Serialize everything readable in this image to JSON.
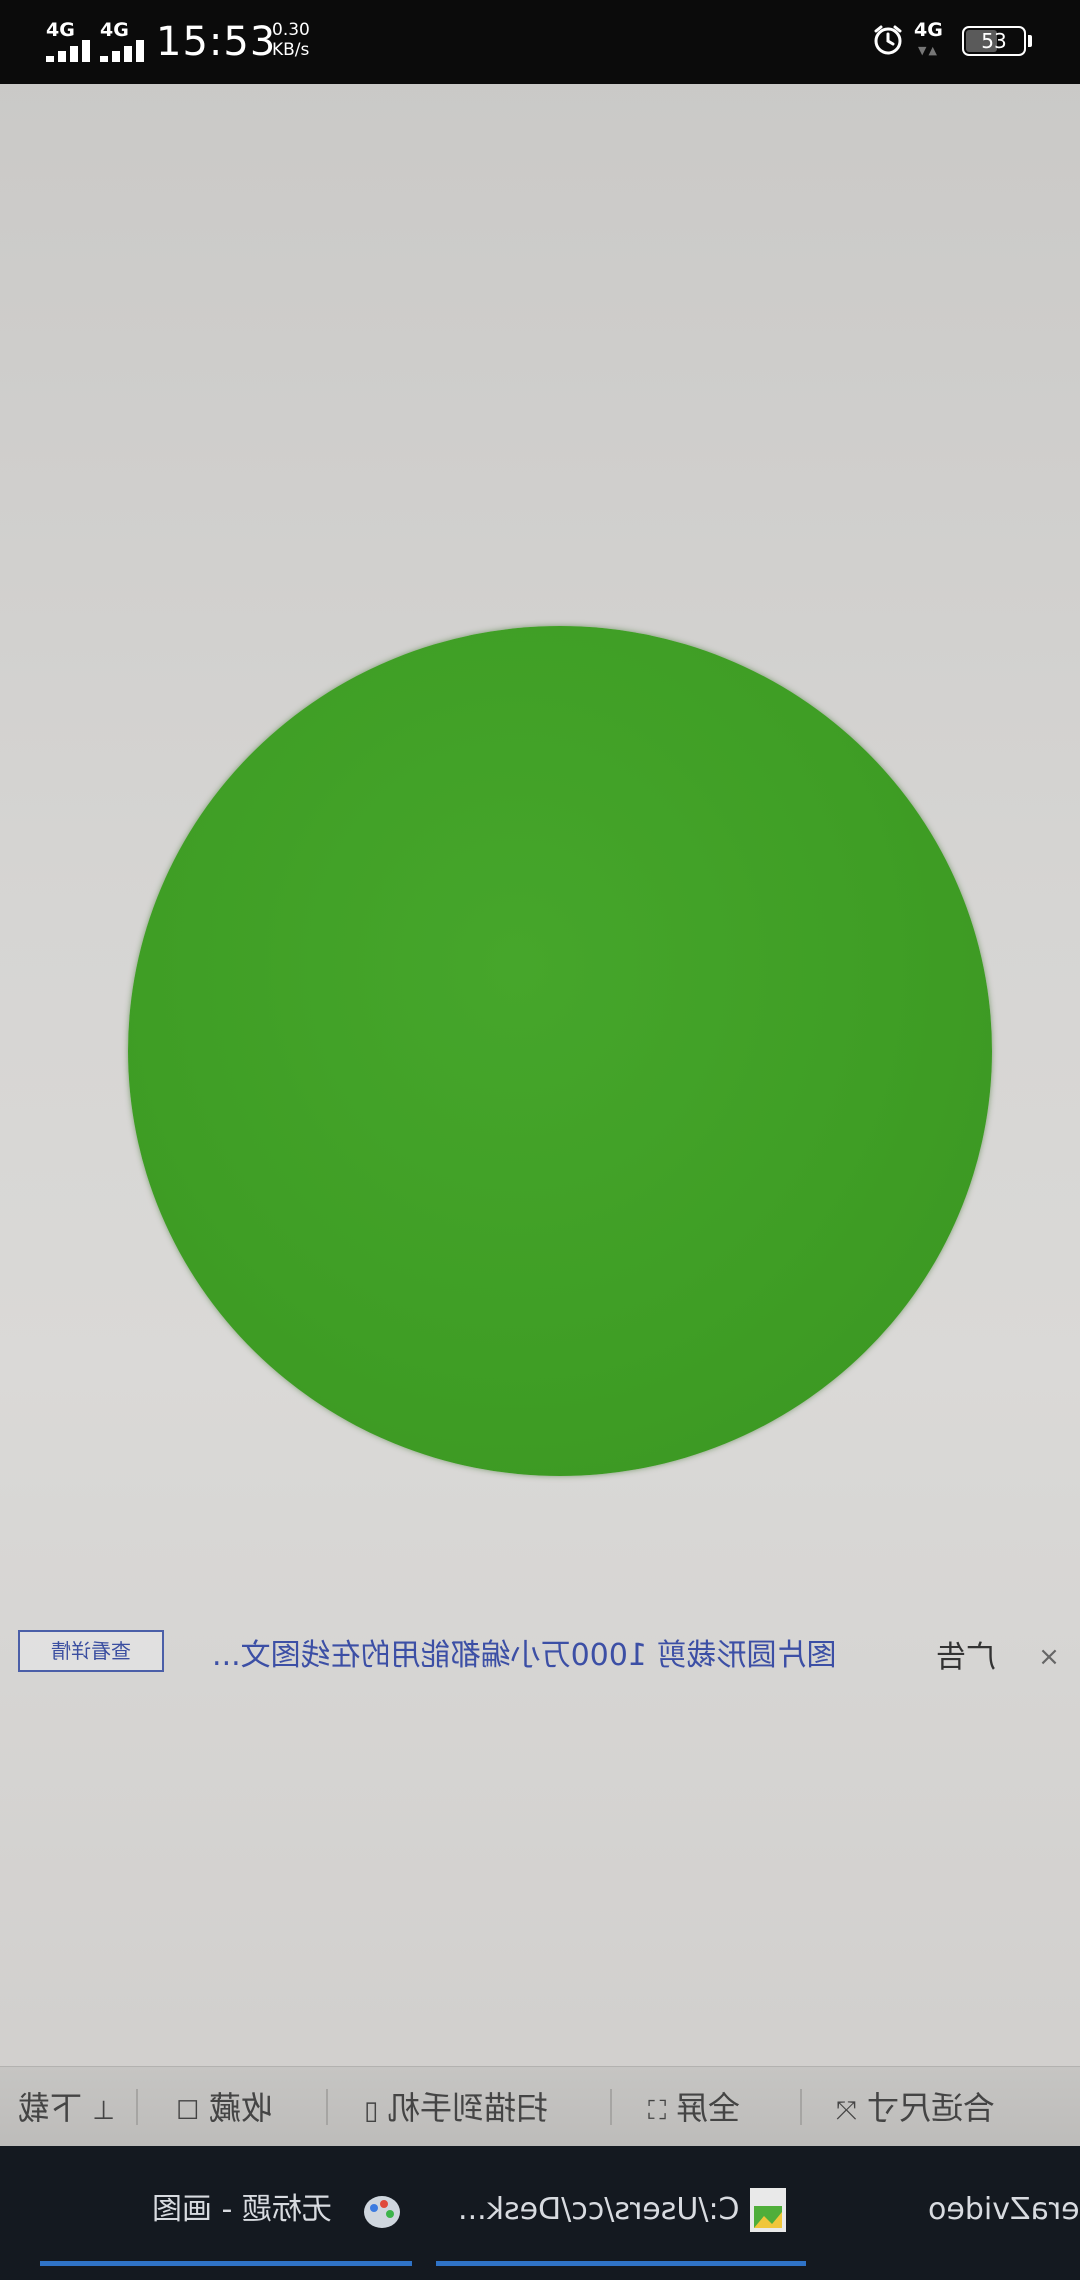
{
  "status_bar": {
    "sim1_network": "4G",
    "sim2_network": "4G",
    "time": "15:53",
    "net_speed_value": "0.30",
    "net_speed_unit": "KB/s",
    "data_network": "4G",
    "battery_level": "53",
    "icons": [
      "signal-icon",
      "alarm-icon",
      "battery-icon"
    ]
  },
  "viewer": {
    "circle_color": "#3f9e25",
    "ad": {
      "details_button": "查看详情",
      "text": "图片圆形裁剪 1000万小编都能用的在线图文...",
      "label": "广告",
      "close_icon": "close-icon"
    }
  },
  "toolbar": {
    "items": [
      {
        "label": "合适尺寸",
        "icon": "fit-size-icon"
      },
      {
        "label": "全屏",
        "icon": "fullscreen-icon"
      },
      {
        "label": "扫描到手机",
        "icon": "phone-icon"
      },
      {
        "label": "收藏",
        "icon": "bookmark-icon"
      },
      {
        "label": "下载",
        "icon": "download-icon"
      }
    ]
  },
  "taskbar": {
    "items": [
      {
        "label": "eraZvideo",
        "icon": "app-icon"
      },
      {
        "label": "C:/Users/cc/Desk...",
        "icon": "image-file-icon"
      },
      {
        "label": "无标题 - 画图",
        "icon": "paint-icon"
      }
    ]
  }
}
